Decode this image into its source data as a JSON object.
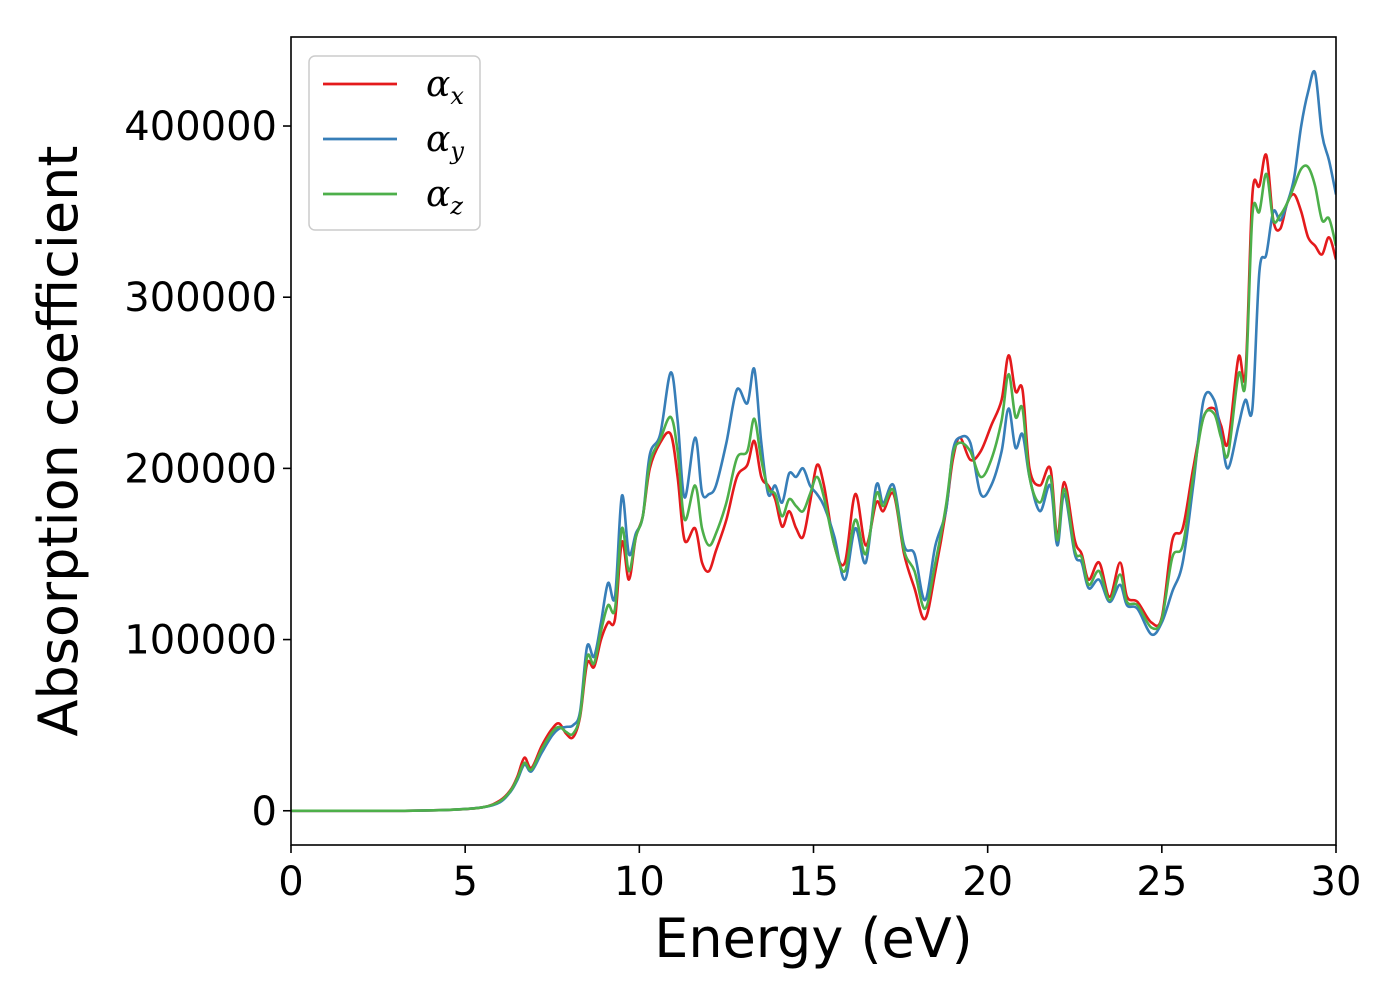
{
  "chart_data": {
    "type": "line",
    "xlabel": "Energy (eV)",
    "ylabel": "Absorption coefficient",
    "xlim": [
      0,
      30
    ],
    "ylim": [
      -20000,
      452000
    ],
    "xticks": [
      0,
      5,
      10,
      15,
      20,
      25,
      30
    ],
    "yticks": [
      0,
      100000,
      200000,
      300000,
      400000
    ],
    "grid": false,
    "legend_position": "top-left",
    "series": [
      {
        "name": "α_x",
        "symbol": "α",
        "subscript": "x",
        "color": "#e41a1c",
        "x": [
          0,
          3,
          4.5,
          5.5,
          6.0,
          6.3,
          6.5,
          6.7,
          6.9,
          7.2,
          7.5,
          7.7,
          7.9,
          8.1,
          8.3,
          8.5,
          8.7,
          8.9,
          9.1,
          9.3,
          9.5,
          9.7,
          9.9,
          10.1,
          10.3,
          10.6,
          10.9,
          11.1,
          11.3,
          11.6,
          11.8,
          12.0,
          12.2,
          12.5,
          12.8,
          13.1,
          13.3,
          13.5,
          13.7,
          13.9,
          14.1,
          14.3,
          14.5,
          14.7,
          14.9,
          15.1,
          15.3,
          15.6,
          15.9,
          16.2,
          16.5,
          16.8,
          17.0,
          17.3,
          17.6,
          17.9,
          18.2,
          18.5,
          18.8,
          19.0,
          19.2,
          19.5,
          19.8,
          20.1,
          20.4,
          20.6,
          20.8,
          21.0,
          21.2,
          21.5,
          21.8,
          22.0,
          22.2,
          22.5,
          22.7,
          22.9,
          23.2,
          23.5,
          23.8,
          24.0,
          24.3,
          24.7,
          25.0,
          25.3,
          25.6,
          25.9,
          26.2,
          26.5,
          26.7,
          26.9,
          27.2,
          27.4,
          27.6,
          27.8,
          28.0,
          28.2,
          28.4,
          28.6,
          28.8,
          29.0,
          29.2,
          29.4,
          29.6,
          29.8,
          30.0
        ],
        "values": [
          0,
          0,
          500,
          2000,
          6000,
          12000,
          20000,
          31000,
          25000,
          38000,
          48000,
          51000,
          45000,
          43000,
          55000,
          86000,
          84000,
          100000,
          110000,
          112000,
          157000,
          135000,
          160000,
          172000,
          200000,
          215000,
          220000,
          195000,
          158000,
          165000,
          145000,
          140000,
          152000,
          170000,
          195000,
          202000,
          216000,
          195000,
          190000,
          182000,
          166000,
          175000,
          165000,
          160000,
          180000,
          202000,
          190000,
          155000,
          145000,
          185000,
          155000,
          180000,
          175000,
          185000,
          150000,
          130000,
          112000,
          140000,
          175000,
          205000,
          218000,
          205000,
          210000,
          225000,
          240000,
          266000,
          245000,
          246000,
          200000,
          190000,
          200000,
          160000,
          192000,
          158000,
          150000,
          135000,
          145000,
          125000,
          145000,
          125000,
          122000,
          110000,
          113000,
          158000,
          165000,
          200000,
          230000,
          235000,
          225000,
          215000,
          265000,
          255000,
          360000,
          365000,
          383000,
          345000,
          340000,
          355000,
          360000,
          350000,
          335000,
          330000,
          325000,
          335000,
          322000
        ]
      },
      {
        "name": "α_y",
        "symbol": "α",
        "subscript": "y",
        "color": "#377eb8",
        "x": [
          0,
          3,
          4.5,
          5.5,
          6.0,
          6.3,
          6.5,
          6.7,
          6.9,
          7.2,
          7.5,
          7.7,
          7.9,
          8.1,
          8.3,
          8.5,
          8.7,
          8.9,
          9.1,
          9.3,
          9.5,
          9.7,
          9.9,
          10.1,
          10.3,
          10.6,
          10.9,
          11.1,
          11.3,
          11.6,
          11.8,
          12.0,
          12.2,
          12.5,
          12.8,
          13.1,
          13.3,
          13.5,
          13.7,
          13.9,
          14.1,
          14.3,
          14.5,
          14.7,
          14.9,
          15.1,
          15.3,
          15.6,
          15.9,
          16.2,
          16.5,
          16.8,
          17.0,
          17.3,
          17.6,
          17.9,
          18.2,
          18.5,
          18.8,
          19.0,
          19.2,
          19.5,
          19.8,
          20.1,
          20.4,
          20.6,
          20.8,
          21.0,
          21.2,
          21.5,
          21.8,
          22.0,
          22.2,
          22.5,
          22.7,
          22.9,
          23.2,
          23.5,
          23.8,
          24.0,
          24.3,
          24.7,
          25.0,
          25.3,
          25.6,
          25.9,
          26.2,
          26.5,
          26.7,
          26.9,
          27.2,
          27.4,
          27.6,
          27.8,
          28.0,
          28.2,
          28.4,
          28.6,
          28.8,
          29.0,
          29.2,
          29.4,
          29.6,
          29.8,
          30.0
        ],
        "values": [
          0,
          0,
          500,
          2000,
          5000,
          11000,
          18000,
          27000,
          23000,
          34000,
          44000,
          48000,
          49000,
          50000,
          58000,
          96000,
          90000,
          110000,
          133000,
          125000,
          184000,
          150000,
          162000,
          172000,
          208000,
          220000,
          256000,
          228000,
          183000,
          218000,
          186000,
          185000,
          190000,
          215000,
          246000,
          238000,
          258000,
          215000,
          185000,
          190000,
          180000,
          197000,
          195000,
          200000,
          190000,
          185000,
          178000,
          160000,
          135000,
          165000,
          145000,
          190000,
          180000,
          190000,
          155000,
          150000,
          123000,
          155000,
          175000,
          210000,
          218000,
          215000,
          185000,
          190000,
          210000,
          235000,
          212000,
          220000,
          195000,
          175000,
          190000,
          155000,
          185000,
          150000,
          145000,
          130000,
          135000,
          122000,
          132000,
          120000,
          118000,
          103000,
          110000,
          128000,
          145000,
          190000,
          240000,
          240000,
          220000,
          200000,
          225000,
          240000,
          235000,
          315000,
          325000,
          350000,
          345000,
          355000,
          370000,
          400000,
          420000,
          431000,
          395000,
          380000,
          360000
        ]
      },
      {
        "name": "α_z",
        "symbol": "α",
        "subscript": "z",
        "color": "#4daf4a",
        "x": [
          0,
          3,
          4.5,
          5.5,
          6.0,
          6.3,
          6.5,
          6.7,
          6.9,
          7.2,
          7.5,
          7.7,
          7.9,
          8.1,
          8.3,
          8.5,
          8.7,
          8.9,
          9.1,
          9.3,
          9.5,
          9.7,
          9.9,
          10.1,
          10.3,
          10.6,
          10.9,
          11.1,
          11.3,
          11.6,
          11.8,
          12.0,
          12.2,
          12.5,
          12.8,
          13.1,
          13.3,
          13.5,
          13.7,
          13.9,
          14.1,
          14.3,
          14.5,
          14.7,
          14.9,
          15.1,
          15.3,
          15.6,
          15.9,
          16.2,
          16.5,
          16.8,
          17.0,
          17.3,
          17.6,
          17.9,
          18.2,
          18.5,
          18.8,
          19.0,
          19.2,
          19.5,
          19.8,
          20.1,
          20.4,
          20.6,
          20.8,
          21.0,
          21.2,
          21.5,
          21.8,
          22.0,
          22.2,
          22.5,
          22.7,
          22.9,
          23.2,
          23.5,
          23.8,
          24.0,
          24.3,
          24.7,
          25.0,
          25.3,
          25.6,
          25.9,
          26.2,
          26.5,
          26.7,
          26.9,
          27.2,
          27.4,
          27.6,
          27.8,
          28.0,
          28.2,
          28.4,
          28.6,
          28.8,
          29.0,
          29.2,
          29.4,
          29.6,
          29.8,
          30.0
        ],
        "values": [
          0,
          0,
          500,
          2000,
          5500,
          11500,
          19000,
          28000,
          24000,
          36000,
          46000,
          49000,
          46000,
          45000,
          56000,
          90000,
          86000,
          105000,
          120000,
          118000,
          165000,
          140000,
          160000,
          172000,
          203000,
          217000,
          230000,
          210000,
          170000,
          190000,
          165000,
          155000,
          162000,
          180000,
          206000,
          210000,
          229000,
          205000,
          188000,
          185000,
          172000,
          182000,
          178000,
          175000,
          185000,
          195000,
          183000,
          155000,
          140000,
          170000,
          150000,
          185000,
          178000,
          187000,
          152000,
          140000,
          118000,
          145000,
          178000,
          208000,
          215000,
          210000,
          195000,
          205000,
          228000,
          255000,
          230000,
          235000,
          195000,
          180000,
          195000,
          158000,
          188000,
          152000,
          148000,
          132000,
          140000,
          123000,
          138000,
          122000,
          120000,
          107000,
          112000,
          148000,
          155000,
          195000,
          230000,
          232000,
          218000,
          208000,
          255000,
          250000,
          348000,
          350000,
          372000,
          345000,
          348000,
          355000,
          365000,
          375000,
          376000,
          365000,
          345000,
          346000,
          330000
        ]
      }
    ]
  }
}
